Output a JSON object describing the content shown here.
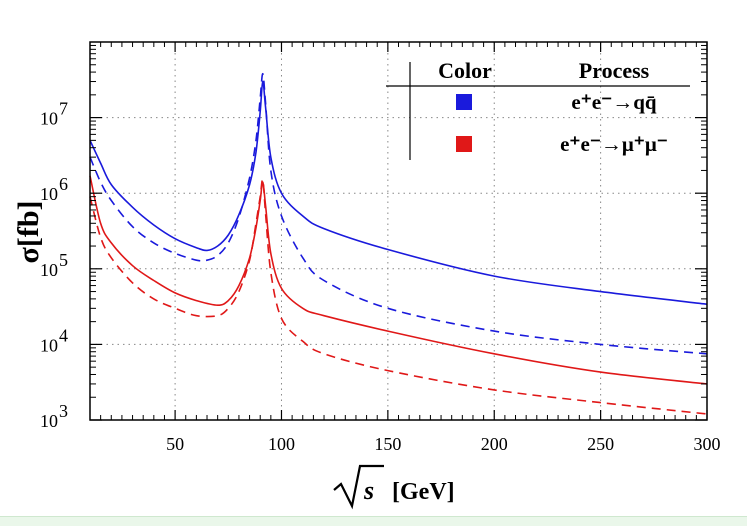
{
  "chart_data": {
    "type": "line",
    "title": "",
    "xlabel": "[GeV]",
    "xlabel_symbol": "s",
    "ylabel": "σ[fb]",
    "xlim": [
      10,
      300
    ],
    "ylim_log10": [
      3,
      8
    ],
    "yscale": "log",
    "grid": true,
    "x_ticks": [
      50,
      100,
      150,
      200,
      250,
      300
    ],
    "x_tick_labels": [
      "50",
      "100",
      "150",
      "200",
      "250",
      "300"
    ],
    "y_ticks": [
      1000,
      10000,
      100000,
      1000000,
      10000000
    ],
    "y_tick_labels": [
      {
        "base": "10",
        "exp": "3"
      },
      {
        "base": "10",
        "exp": "4"
      },
      {
        "base": "10",
        "exp": "5"
      },
      {
        "base": "10",
        "exp": "6"
      },
      {
        "base": "10",
        "exp": "7"
      }
    ],
    "legend": {
      "placement": "top-right",
      "header_color": "Color",
      "header_process": "Process",
      "entries": [
        {
          "color": "#1a1adc",
          "label": "e⁺e⁻→qq̄"
        },
        {
          "color": "#e01818",
          "label": "e⁺e⁻→μ⁺μ⁻"
        }
      ]
    },
    "series": [
      {
        "name": "e+e- → q qbar (solid)",
        "color": "#1a1adc",
        "style": "solid",
        "x": [
          10,
          15,
          20,
          30,
          40,
          50,
          60,
          65,
          70,
          75,
          80,
          85,
          88,
          90,
          91.2,
          92.5,
          95,
          100,
          110,
          120,
          150,
          200,
          250,
          300
        ],
        "y": [
          5000000,
          2500000,
          1300000,
          650000,
          380000,
          250000,
          190000,
          175000,
          200000,
          280000,
          520000,
          1300000,
          3500000,
          12000000,
          30000000,
          14000000,
          3000000,
          1000000,
          500000,
          340000,
          180000,
          80000,
          50000,
          34000
        ]
      },
      {
        "name": "e+e- → q qbar (dashed)",
        "color": "#1a1adc",
        "style": "dashed",
        "x": [
          10,
          15,
          20,
          30,
          40,
          50,
          60,
          65,
          70,
          75,
          80,
          85,
          88,
          90,
          91.2,
          92.5,
          95,
          100,
          110,
          120,
          150,
          200,
          250,
          300
        ],
        "y": [
          3000000,
          1400000,
          800000,
          360000,
          220000,
          160000,
          130000,
          130000,
          150000,
          220000,
          480000,
          1600000,
          5000000,
          18000000,
          38000000,
          16000000,
          2000000,
          500000,
          140000,
          70000,
          30000,
          15000,
          10000,
          7500
        ]
      },
      {
        "name": "e+e- → μ+μ- (solid)",
        "color": "#e01818",
        "style": "solid",
        "x": [
          10,
          15,
          20,
          30,
          40,
          50,
          60,
          70,
          75,
          80,
          85,
          88,
          90,
          91.2,
          92.5,
          95,
          100,
          110,
          120,
          150,
          200,
          250,
          300
        ],
        "y": [
          1700000,
          400000,
          220000,
          110000,
          70000,
          48000,
          38000,
          33000,
          38000,
          60000,
          140000,
          350000,
          800000,
          1400000,
          700000,
          160000,
          55000,
          30000,
          24000,
          15000,
          7500,
          4300,
          3000
        ]
      },
      {
        "name": "e+e- → μ+μ- (dashed)",
        "color": "#e01818",
        "style": "dashed",
        "x": [
          10,
          15,
          20,
          30,
          40,
          50,
          60,
          70,
          75,
          80,
          85,
          88,
          90,
          91.2,
          92.5,
          95,
          100,
          110,
          120,
          150,
          200,
          250,
          300
        ],
        "y": [
          900000,
          260000,
          140000,
          65000,
          40000,
          30000,
          24000,
          24000,
          30000,
          50000,
          130000,
          400000,
          900000,
          1500000,
          550000,
          90000,
          22000,
          11000,
          7500,
          4500,
          2500,
          1700,
          1200
        ]
      }
    ]
  },
  "colors": {
    "grid": "#888888",
    "axis": "#000000",
    "strip": "#eaf7ea"
  }
}
